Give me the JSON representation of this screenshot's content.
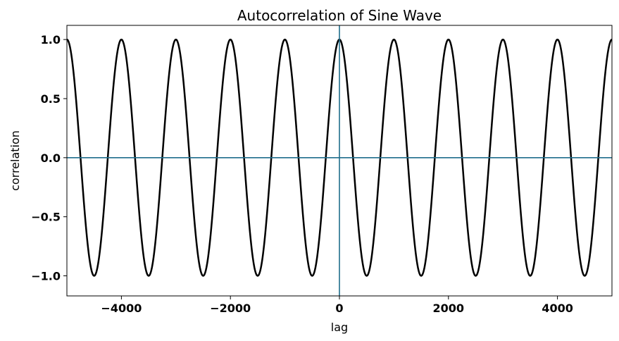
{
  "chart_data": {
    "type": "line",
    "title": "Autocorrelation of Sine Wave",
    "xlabel": "lag",
    "ylabel": "correlation",
    "xlim": [
      -5000,
      5000
    ],
    "ylim": [
      -1.17,
      1.12
    ],
    "x_ticks": [
      -4000,
      -2000,
      0,
      2000,
      4000
    ],
    "x_tick_labels": [
      "−4000",
      "−2000",
      "0",
      "2000",
      "4000"
    ],
    "y_ticks": [
      -1.0,
      -0.5,
      0.0,
      0.5,
      1.0
    ],
    "y_tick_labels": [
      "−1.0",
      "−0.5",
      "0.0",
      "0.5",
      "1.0"
    ],
    "grid": false,
    "series": [
      {
        "function": "cosine",
        "amplitude": 1.0,
        "period": 1000,
        "x_range": [
          -5000,
          5000
        ],
        "sample_step": 10,
        "color": "#000000"
      }
    ],
    "reference_lines": [
      {
        "orientation": "horizontal",
        "value": 0,
        "color": "#1f6e8c"
      },
      {
        "orientation": "vertical",
        "value": 0,
        "color": "#1f6e8c"
      }
    ]
  }
}
